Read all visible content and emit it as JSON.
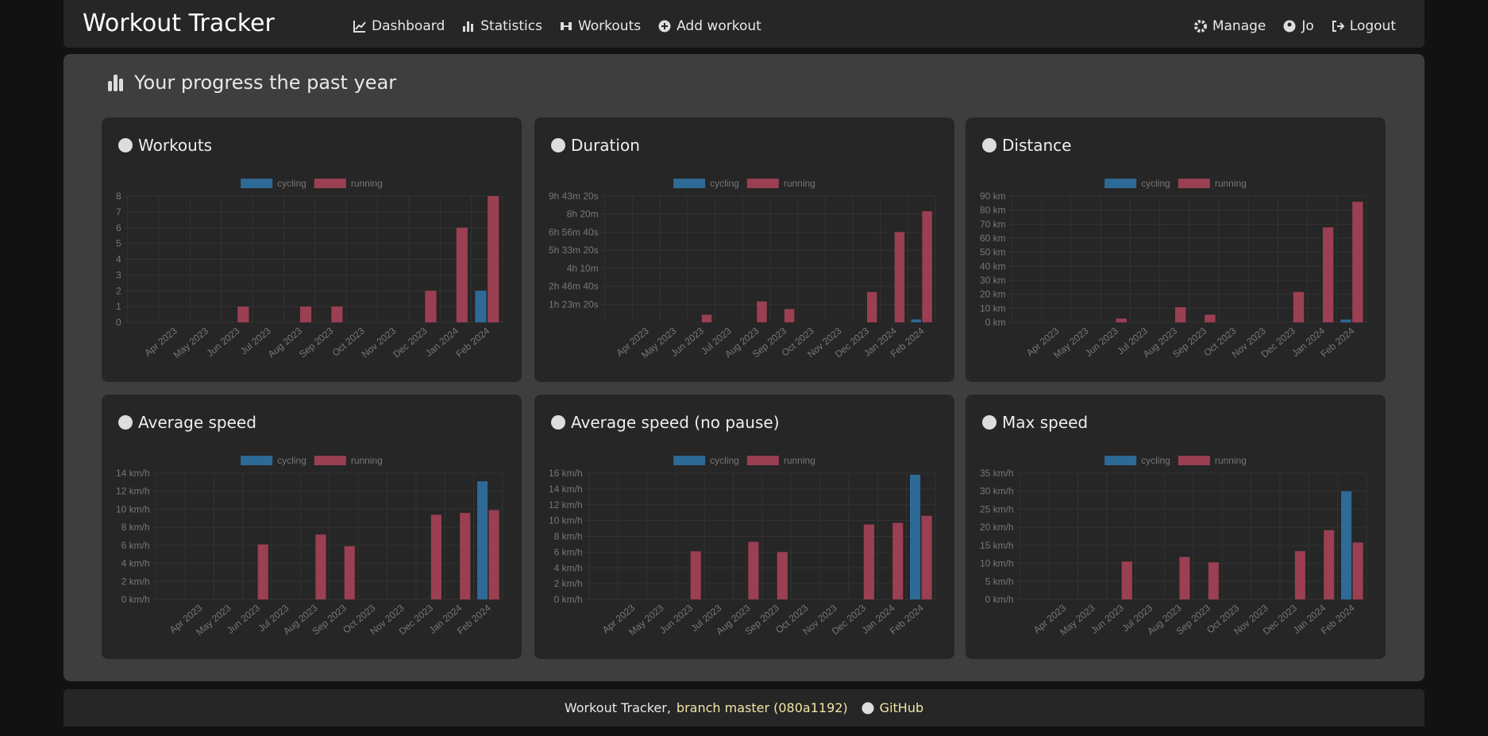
{
  "nav": {
    "brand": "Workout Tracker",
    "links": [
      "Dashboard",
      "Statistics",
      "Workouts",
      "Add workout"
    ],
    "right": [
      "Manage",
      "Jo",
      "Logout"
    ]
  },
  "heading": "Your progress the past year",
  "footer": {
    "text": "Workout Tracker,",
    "branch": "branch master (080a1192)",
    "github": "GitHub"
  },
  "chart_data": [
    {
      "type": "bar",
      "title": "Workouts",
      "grid": true,
      "categories": [
        null,
        "Apr 2023",
        "May 2023",
        "Jun 2023",
        "Jul 2023",
        "Aug 2023",
        "Sep 2023",
        "Oct 2023",
        "Nov 2023",
        "Dec 2023",
        "Jan 2024",
        "Feb 2024"
      ],
      "series": [
        {
          "name": "cycling",
          "color": "#2e6a96",
          "values": [
            0,
            0,
            0,
            0,
            0,
            0,
            0,
            0,
            0,
            0,
            0,
            2
          ]
        },
        {
          "name": "running",
          "color": "#9b3f52",
          "values": [
            0,
            0,
            0,
            1,
            0,
            1,
            1,
            0,
            0,
            2,
            6,
            8
          ]
        }
      ],
      "ylim": [
        0,
        8
      ],
      "yticks": [
        0,
        1,
        2,
        3,
        4,
        5,
        6,
        7,
        8
      ]
    },
    {
      "type": "bar",
      "title": "Duration",
      "grid": true,
      "categories": [
        null,
        "Apr 2023",
        "May 2023",
        "Jun 2023",
        "Jul 2023",
        "Aug 2023",
        "Sep 2023",
        "Oct 2023",
        "Nov 2023",
        "Dec 2023",
        "Jan 2024",
        "Feb 2024"
      ],
      "series": [
        {
          "name": "cycling",
          "color": "#2e6a96",
          "values": [
            0,
            0,
            0,
            0,
            0,
            0,
            0,
            0,
            0,
            0,
            0,
            800
          ]
        },
        {
          "name": "running",
          "color": "#9b3f52",
          "values": [
            0,
            0,
            0,
            2100,
            0,
            5800,
            3700,
            0,
            0,
            8400,
            25000,
            30800
          ]
        }
      ],
      "ylim": [
        0,
        35000
      ],
      "yticks": [
        {
          "value": 5000,
          "label": "1h 23m 20s"
        },
        {
          "value": 10000,
          "label": "2h 46m 40s"
        },
        {
          "value": 15000,
          "label": "4h 10m"
        },
        {
          "value": 20000,
          "label": "5h 33m 20s"
        },
        {
          "value": 25000,
          "label": "6h 56m 40s"
        },
        {
          "value": 30000,
          "label": "8h 20m"
        },
        {
          "value": 35000,
          "label": "9h 43m 20s"
        }
      ]
    },
    {
      "type": "bar",
      "title": "Distance",
      "grid": true,
      "categories": [
        null,
        "Apr 2023",
        "May 2023",
        "Jun 2023",
        "Jul 2023",
        "Aug 2023",
        "Sep 2023",
        "Oct 2023",
        "Nov 2023",
        "Dec 2023",
        "Jan 2024",
        "Feb 2024"
      ],
      "series": [
        {
          "name": "cycling",
          "color": "#2e6a96",
          "values": [
            0,
            0,
            0,
            0,
            0,
            0,
            0,
            0,
            0,
            0,
            0,
            2
          ]
        },
        {
          "name": "running",
          "color": "#9b3f52",
          "values": [
            0,
            0,
            0,
            2.7,
            0,
            10.8,
            5.4,
            0,
            0,
            21.7,
            67.7,
            86
          ]
        }
      ],
      "ylim": [
        0,
        90
      ],
      "yticks": [
        {
          "value": 0,
          "label": "0 km"
        },
        {
          "value": 10,
          "label": "10 km"
        },
        {
          "value": 20,
          "label": "20 km"
        },
        {
          "value": 30,
          "label": "30 km"
        },
        {
          "value": 40,
          "label": "40 km"
        },
        {
          "value": 50,
          "label": "50 km"
        },
        {
          "value": 60,
          "label": "60 km"
        },
        {
          "value": 70,
          "label": "70 km"
        },
        {
          "value": 80,
          "label": "80 km"
        },
        {
          "value": 90,
          "label": "90 km"
        }
      ]
    },
    {
      "type": "bar",
      "title": "Average speed",
      "grid": true,
      "categories": [
        null,
        "Apr 2023",
        "May 2023",
        "Jun 2023",
        "Jul 2023",
        "Aug 2023",
        "Sep 2023",
        "Oct 2023",
        "Nov 2023",
        "Dec 2023",
        "Jan 2024",
        "Feb 2024"
      ],
      "series": [
        {
          "name": "cycling",
          "color": "#2e6a96",
          "values": [
            0,
            0,
            0,
            0,
            0,
            0,
            0,
            0,
            0,
            0,
            0,
            13.1
          ]
        },
        {
          "name": "running",
          "color": "#9b3f52",
          "values": [
            0,
            0,
            0,
            6.1,
            0,
            7.2,
            5.9,
            0,
            0,
            9.4,
            9.6,
            9.9
          ]
        }
      ],
      "ylim": [
        0,
        14
      ],
      "yticks": [
        {
          "value": 0,
          "label": "0 km/h"
        },
        {
          "value": 2,
          "label": "2 km/h"
        },
        {
          "value": 4,
          "label": "4 km/h"
        },
        {
          "value": 6,
          "label": "6 km/h"
        },
        {
          "value": 8,
          "label": "8 km/h"
        },
        {
          "value": 10,
          "label": "10 km/h"
        },
        {
          "value": 12,
          "label": "12 km/h"
        },
        {
          "value": 14,
          "label": "14 km/h"
        }
      ]
    },
    {
      "type": "bar",
      "title": "Average speed (no pause)",
      "grid": true,
      "categories": [
        null,
        "Apr 2023",
        "May 2023",
        "Jun 2023",
        "Jul 2023",
        "Aug 2023",
        "Sep 2023",
        "Oct 2023",
        "Nov 2023",
        "Dec 2023",
        "Jan 2024",
        "Feb 2024"
      ],
      "series": [
        {
          "name": "cycling",
          "color": "#2e6a96",
          "values": [
            0,
            0,
            0,
            0,
            0,
            0,
            0,
            0,
            0,
            0,
            0,
            15.8
          ]
        },
        {
          "name": "running",
          "color": "#9b3f52",
          "values": [
            0,
            0,
            0,
            6.1,
            0,
            7.3,
            6,
            0,
            0,
            9.5,
            9.7,
            10.6
          ]
        }
      ],
      "ylim": [
        0,
        16
      ],
      "yticks": [
        {
          "value": 0,
          "label": "0 km/h"
        },
        {
          "value": 2,
          "label": "2 km/h"
        },
        {
          "value": 4,
          "label": "4 km/h"
        },
        {
          "value": 6,
          "label": "6 km/h"
        },
        {
          "value": 8,
          "label": "8 km/h"
        },
        {
          "value": 10,
          "label": "10 km/h"
        },
        {
          "value": 12,
          "label": "12 km/h"
        },
        {
          "value": 14,
          "label": "14 km/h"
        },
        {
          "value": 16,
          "label": "16 km/h"
        }
      ]
    },
    {
      "type": "bar",
      "title": "Max speed",
      "grid": true,
      "categories": [
        null,
        "Apr 2023",
        "May 2023",
        "Jun 2023",
        "Jul 2023",
        "Aug 2023",
        "Sep 2023",
        "Oct 2023",
        "Nov 2023",
        "Dec 2023",
        "Jan 2024",
        "Feb 2024"
      ],
      "series": [
        {
          "name": "cycling",
          "color": "#2e6a96",
          "values": [
            0,
            0,
            0,
            0,
            0,
            0,
            0,
            0,
            0,
            0,
            0,
            30
          ]
        },
        {
          "name": "running",
          "color": "#9b3f52",
          "values": [
            0,
            0,
            0,
            10.5,
            0,
            11.8,
            10.3,
            0,
            0,
            13.4,
            19.2,
            15.8
          ]
        }
      ],
      "ylim": [
        0,
        35
      ],
      "yticks": [
        {
          "value": 0,
          "label": "0 km/h"
        },
        {
          "value": 5,
          "label": "5 km/h"
        },
        {
          "value": 10,
          "label": "10 km/h"
        },
        {
          "value": 15,
          "label": "15 km/h"
        },
        {
          "value": 20,
          "label": "20 km/h"
        },
        {
          "value": 25,
          "label": "25 km/h"
        },
        {
          "value": 30,
          "label": "30 km/h"
        },
        {
          "value": 35,
          "label": "35 km/h"
        }
      ]
    }
  ]
}
